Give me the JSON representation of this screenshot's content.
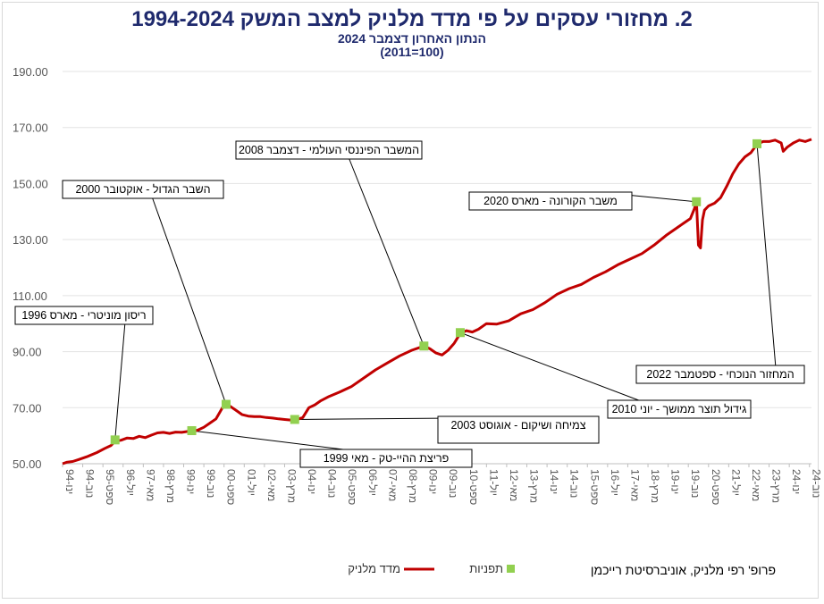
{
  "chart_data": {
    "type": "line",
    "title": "2. מחזורי עסקים על פי מדד מלניק למצב המשק 1994-2024",
    "subtitle1": "הנתון האחרון דצמבר 2024",
    "subtitle2": "(100=2011)",
    "xlabel": "",
    "ylabel": "",
    "ylim": [
      50,
      190
    ],
    "yticks": [
      "50.00",
      "70.00",
      "90.00",
      "110.00",
      "130.00",
      "150.00",
      "170.00",
      "190.00"
    ],
    "grid": true,
    "legend_position": "bottom",
    "xticks": [
      "ינו-94",
      "נוב-94",
      "ספט-95",
      "יול-96",
      "מאי-97",
      "מרץ-98",
      "ינו-99",
      "נוב-99",
      "ספט-00",
      "יול-01",
      "מאי-02",
      "מרץ-03",
      "ינו-04",
      "נוב-04",
      "ספט-05",
      "יול-06",
      "מאי-07",
      "מרץ-08",
      "ינו-09",
      "נוב-09",
      "ספט-10",
      "יול-11",
      "מאי-12",
      "מרץ-13",
      "ינו-14",
      "נוב-14",
      "ספט-15",
      "יול-16",
      "מאי-17",
      "מרץ-18",
      "ינו-19",
      "נוב-19",
      "ספט-20",
      "יול-21",
      "מאי-22",
      "מרץ-23",
      "ינו-24",
      "נוב-24"
    ],
    "series": [
      {
        "name": "מדד מלניק",
        "color": "#c00000",
        "points": [
          [
            "1994-01",
            50.0
          ],
          [
            "1994-03",
            50.5
          ],
          [
            "1994-06",
            50.8
          ],
          [
            "1994-09",
            51.5
          ],
          [
            "1995-01",
            52.5
          ],
          [
            "1995-06",
            54.0
          ],
          [
            "1995-10",
            55.5
          ],
          [
            "1996-01",
            56.5
          ],
          [
            "1996-03",
            58.0
          ],
          [
            "1996-06",
            58.4
          ],
          [
            "1996-09",
            59.2
          ],
          [
            "1996-12",
            59.0
          ],
          [
            "1997-03",
            59.8
          ],
          [
            "1997-06",
            59.3
          ],
          [
            "1997-09",
            60.2
          ],
          [
            "1997-12",
            61.0
          ],
          [
            "1998-03",
            61.2
          ],
          [
            "1998-06",
            60.8
          ],
          [
            "1998-09",
            61.3
          ],
          [
            "1998-12",
            61.2
          ],
          [
            "1999-03",
            61.5
          ],
          [
            "1999-05",
            61.5
          ],
          [
            "1999-08",
            62.0
          ],
          [
            "1999-11",
            63.0
          ],
          [
            "2000-02",
            64.5
          ],
          [
            "2000-05",
            66.0
          ],
          [
            "2000-07",
            68.5
          ],
          [
            "2000-09",
            71.0
          ],
          [
            "2000-10",
            71.0
          ],
          [
            "2000-12",
            70.5
          ],
          [
            "2001-03",
            69.0
          ],
          [
            "2001-06",
            67.5
          ],
          [
            "2001-09",
            67.0
          ],
          [
            "2001-12",
            66.8
          ],
          [
            "2002-03",
            66.8
          ],
          [
            "2002-06",
            66.5
          ],
          [
            "2002-09",
            66.3
          ],
          [
            "2002-12",
            66.0
          ],
          [
            "2003-03",
            65.8
          ],
          [
            "2003-06",
            65.6
          ],
          [
            "2003-08",
            65.5
          ],
          [
            "2003-12",
            66.5
          ],
          [
            "2004-03",
            70.0
          ],
          [
            "2004-06",
            71.0
          ],
          [
            "2004-09",
            72.5
          ],
          [
            "2005-01",
            74.0
          ],
          [
            "2005-06",
            75.5
          ],
          [
            "2005-12",
            77.5
          ],
          [
            "2006-06",
            80.5
          ],
          [
            "2006-12",
            83.5
          ],
          [
            "2007-06",
            86.0
          ],
          [
            "2007-12",
            88.5
          ],
          [
            "2008-06",
            90.5
          ],
          [
            "2008-12",
            92.0
          ],
          [
            "2009-03",
            91.0
          ],
          [
            "2009-06",
            89.5
          ],
          [
            "2009-09",
            88.8
          ],
          [
            "2009-12",
            90.5
          ],
          [
            "2010-03",
            93.0
          ],
          [
            "2010-06",
            96.5
          ],
          [
            "2010-09",
            97.5
          ],
          [
            "2010-12",
            97.0
          ],
          [
            "2011-03",
            98.0
          ],
          [
            "2011-07",
            100.0
          ],
          [
            "2011-12",
            99.8
          ],
          [
            "2012-06",
            101.0
          ],
          [
            "2012-12",
            103.5
          ],
          [
            "2013-06",
            105.0
          ],
          [
            "2013-12",
            107.5
          ],
          [
            "2014-06",
            110.5
          ],
          [
            "2014-12",
            112.5
          ],
          [
            "2015-06",
            114.0
          ],
          [
            "2015-12",
            116.5
          ],
          [
            "2016-06",
            118.5
          ],
          [
            "2016-12",
            121.0
          ],
          [
            "2017-06",
            123.0
          ],
          [
            "2017-12",
            125.0
          ],
          [
            "2018-06",
            128.0
          ],
          [
            "2018-12",
            131.5
          ],
          [
            "2019-06",
            134.5
          ],
          [
            "2019-12",
            137.5
          ],
          [
            "2020-02",
            141.0
          ],
          [
            "2020-03",
            143.5
          ],
          [
            "2020-04",
            128.0
          ],
          [
            "2020-05",
            127.0
          ],
          [
            "2020-06",
            137.0
          ],
          [
            "2020-07",
            140.5
          ],
          [
            "2020-09",
            142.0
          ],
          [
            "2020-12",
            143.0
          ],
          [
            "2021-03",
            145.0
          ],
          [
            "2021-06",
            149.0
          ],
          [
            "2021-09",
            153.5
          ],
          [
            "2021-12",
            157.0
          ],
          [
            "2022-03",
            159.5
          ],
          [
            "2022-06",
            161.0
          ],
          [
            "2022-09",
            164.0
          ],
          [
            "2022-12",
            165.0
          ],
          [
            "2023-03",
            165.0
          ],
          [
            "2023-06",
            165.5
          ],
          [
            "2023-09",
            164.5
          ],
          [
            "2023-10",
            161.5
          ],
          [
            "2023-12",
            163.0
          ],
          [
            "2024-03",
            164.5
          ],
          [
            "2024-06",
            165.5
          ],
          [
            "2024-09",
            165.0
          ],
          [
            "2024-12",
            165.8
          ]
        ]
      },
      {
        "name": "תפניות",
        "color": "#92d050",
        "points": [
          [
            "1996-03",
            58.5
          ],
          [
            "1999-05",
            61.8
          ],
          [
            "2000-10",
            71.2
          ],
          [
            "2003-08",
            65.8
          ],
          [
            "2008-12",
            92.0
          ],
          [
            "2010-06",
            96.8
          ],
          [
            "2020-03",
            143.5
          ],
          [
            "2022-09",
            164.2
          ]
        ]
      }
    ],
    "annotations": [
      {
        "label": "ריסון מוניטרי - מארס 1996",
        "date": "1996-03"
      },
      {
        "label": "פריצת ההיי-טק - מאי 1999",
        "date": "1999-05"
      },
      {
        "label": "השבר הגדול - אוקטובר 2000",
        "date": "2000-10"
      },
      {
        "label": "צמיחה ושיקום - אוגוסט 2003",
        "date": "2003-08"
      },
      {
        "label": "המשבר הפיננסי העולמי - דצמבר 2008",
        "date": "2008-12"
      },
      {
        "label": "גידול תוצר ממושך - יוני 2010",
        "date": "2010-06"
      },
      {
        "label": "משבר הקורונה - מארס 2020",
        "date": "2020-03"
      },
      {
        "label": "המחזור הנוכחי - ספטמבר 2022",
        "date": "2022-09"
      }
    ]
  },
  "credit": "פרופ' רפי מלניק, אוניברסיטת רייכמן"
}
